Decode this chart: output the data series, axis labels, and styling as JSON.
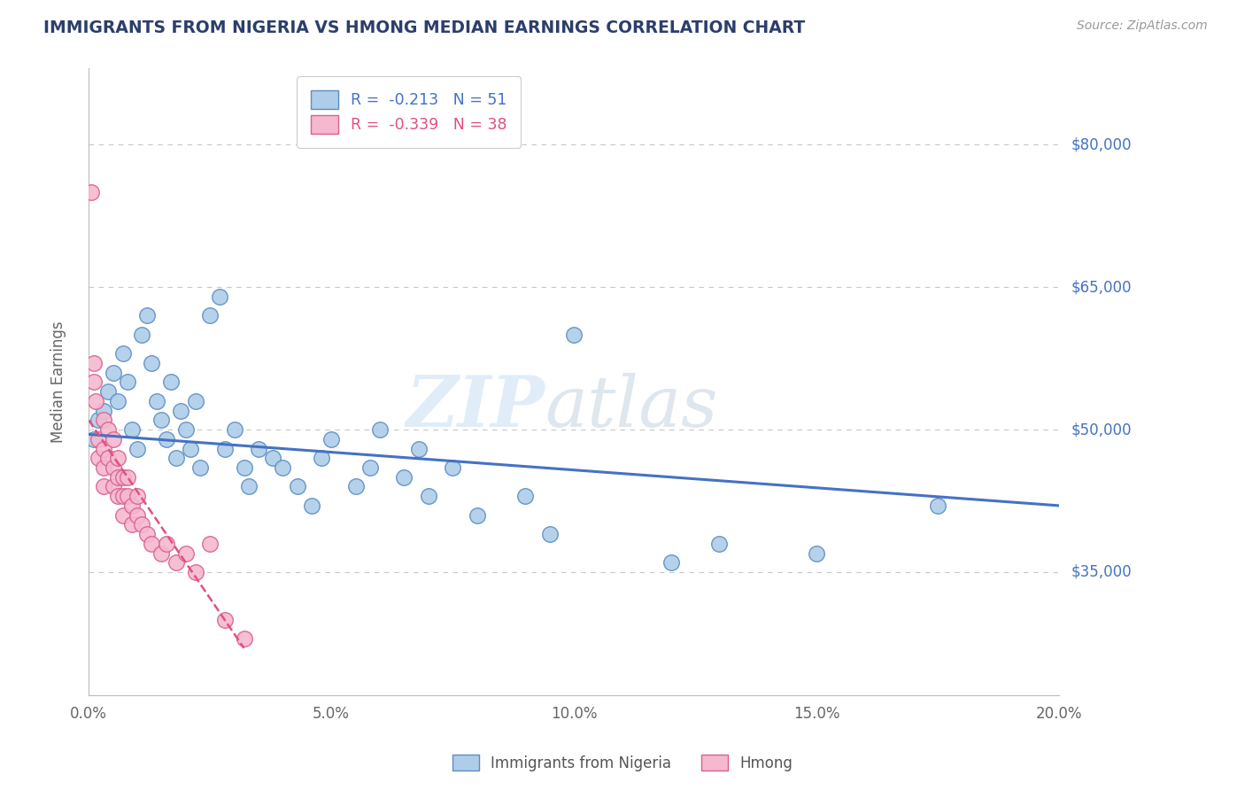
{
  "title": "IMMIGRANTS FROM NIGERIA VS HMONG MEDIAN EARNINGS CORRELATION CHART",
  "source": "Source: ZipAtlas.com",
  "ylabel": "Median Earnings",
  "xlim": [
    0.0,
    0.2
  ],
  "ylim": [
    22000,
    88000
  ],
  "yticks": [
    35000,
    50000,
    65000,
    80000
  ],
  "ytick_labels": [
    "$35,000",
    "$50,000",
    "$65,000",
    "$80,000"
  ],
  "xticks": [
    0.0,
    0.05,
    0.1,
    0.15,
    0.2
  ],
  "xtick_labels": [
    "0.0%",
    "5.0%",
    "10.0%",
    "15.0%",
    "20.0%"
  ],
  "nigeria_R": -0.213,
  "nigeria_N": 51,
  "hmong_R": -0.339,
  "hmong_N": 38,
  "nigeria_color": "#aecde8",
  "hmong_color": "#f5b8cf",
  "nigeria_edge_color": "#5b8ec4",
  "hmong_edge_color": "#d96090",
  "nigeria_line_color": "#4472c4",
  "hmong_line_color": "#e05080",
  "background_color": "#ffffff",
  "grid_color": "#c8c8c8",
  "title_color": "#2c3e6b",
  "nigeria_scatter_x": [
    0.001,
    0.002,
    0.003,
    0.004,
    0.005,
    0.006,
    0.007,
    0.008,
    0.009,
    0.01,
    0.011,
    0.012,
    0.013,
    0.014,
    0.015,
    0.016,
    0.017,
    0.018,
    0.019,
    0.02,
    0.021,
    0.022,
    0.023,
    0.025,
    0.027,
    0.028,
    0.03,
    0.032,
    0.033,
    0.035,
    0.038,
    0.04,
    0.043,
    0.046,
    0.048,
    0.05,
    0.055,
    0.058,
    0.06,
    0.065,
    0.068,
    0.07,
    0.075,
    0.08,
    0.09,
    0.095,
    0.1,
    0.12,
    0.13,
    0.15,
    0.175
  ],
  "nigeria_scatter_y": [
    49000,
    51000,
    52000,
    54000,
    56000,
    53000,
    58000,
    55000,
    50000,
    48000,
    60000,
    62000,
    57000,
    53000,
    51000,
    49000,
    55000,
    47000,
    52000,
    50000,
    48000,
    53000,
    46000,
    62000,
    64000,
    48000,
    50000,
    46000,
    44000,
    48000,
    47000,
    46000,
    44000,
    42000,
    47000,
    49000,
    44000,
    46000,
    50000,
    45000,
    48000,
    43000,
    46000,
    41000,
    43000,
    39000,
    60000,
    36000,
    38000,
    37000,
    42000
  ],
  "hmong_scatter_x": [
    0.0005,
    0.001,
    0.001,
    0.0015,
    0.002,
    0.002,
    0.003,
    0.003,
    0.003,
    0.003,
    0.004,
    0.004,
    0.005,
    0.005,
    0.005,
    0.006,
    0.006,
    0.006,
    0.007,
    0.007,
    0.007,
    0.008,
    0.008,
    0.009,
    0.009,
    0.01,
    0.01,
    0.011,
    0.012,
    0.013,
    0.015,
    0.016,
    0.018,
    0.02,
    0.022,
    0.025,
    0.028,
    0.032
  ],
  "hmong_scatter_y": [
    75000,
    57000,
    55000,
    53000,
    49000,
    47000,
    51000,
    48000,
    46000,
    44000,
    50000,
    47000,
    49000,
    46000,
    44000,
    47000,
    45000,
    43000,
    45000,
    43000,
    41000,
    45000,
    43000,
    42000,
    40000,
    43000,
    41000,
    40000,
    39000,
    38000,
    37000,
    38000,
    36000,
    37000,
    35000,
    38000,
    30000,
    28000
  ],
  "nigeria_regline_x": [
    0.0,
    0.2
  ],
  "nigeria_regline_y": [
    49500,
    42000
  ],
  "hmong_regline_x": [
    0.0,
    0.032
  ],
  "hmong_regline_y": [
    51000,
    27000
  ]
}
